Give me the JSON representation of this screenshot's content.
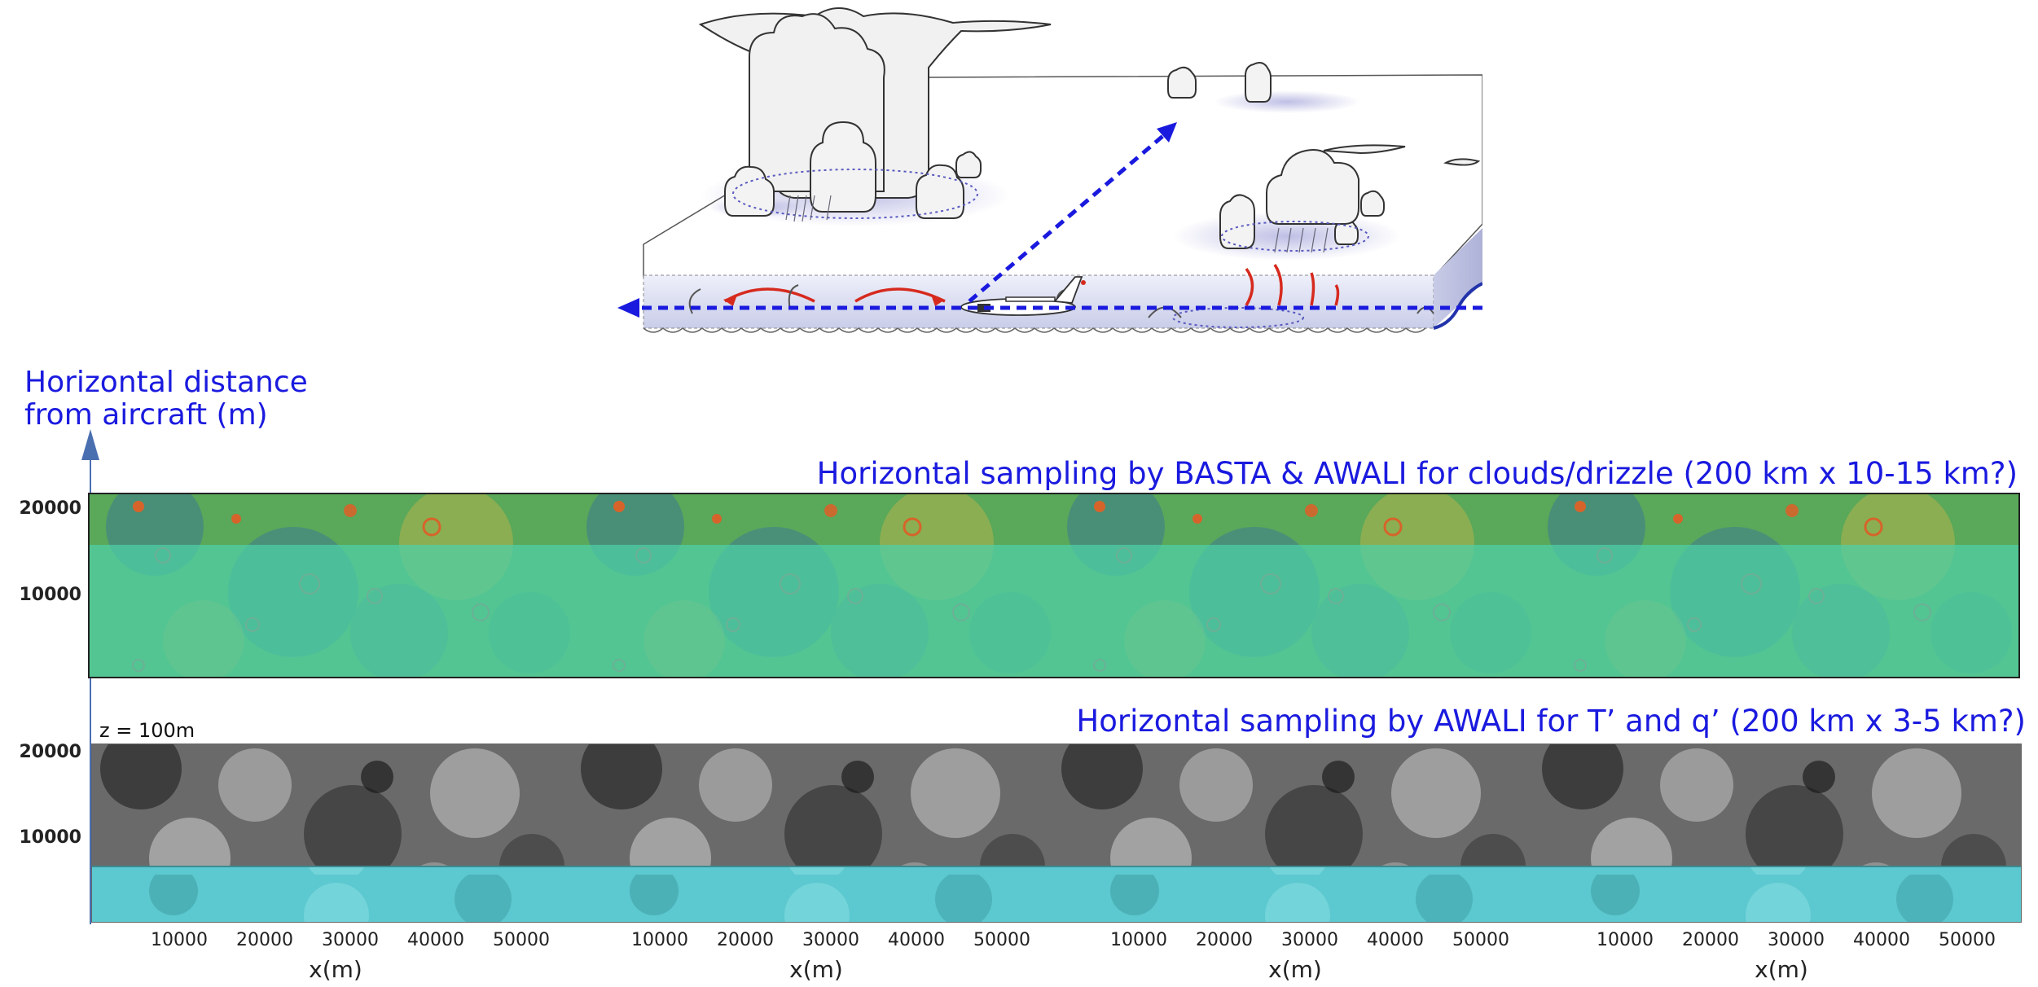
{
  "axis": {
    "vertical_label_line1": "Horizontal distance",
    "vertical_label_line2": "from aircraft (m)"
  },
  "panel_top": {
    "title": "Horizontal sampling by BASTA & AWALI for clouds/drizzle (200 km x 10-15 km?)",
    "yticks": [
      "20000",
      "10000"
    ]
  },
  "panel_bottom": {
    "title": "Horizontal sampling by AWALI for T’ and q’ (200 km x 3-5 km?)",
    "height_label": "z = 100m",
    "yticks": [
      "20000",
      "10000"
    ]
  },
  "x_axis": {
    "ticks": [
      "10000",
      "20000",
      "30000",
      "40000",
      "50000"
    ],
    "label": "x(m)",
    "repeats": 4
  },
  "colors": {
    "arrow_blue": "#1a1adf",
    "circulation_red": "#d62a1e",
    "top_panel_green": "#5aa85a",
    "top_overlay_teal": "#4fd0a8",
    "bottom_panel_gray": "#6a6a6a",
    "bottom_overlay_cyan": "#5cc8cf"
  }
}
